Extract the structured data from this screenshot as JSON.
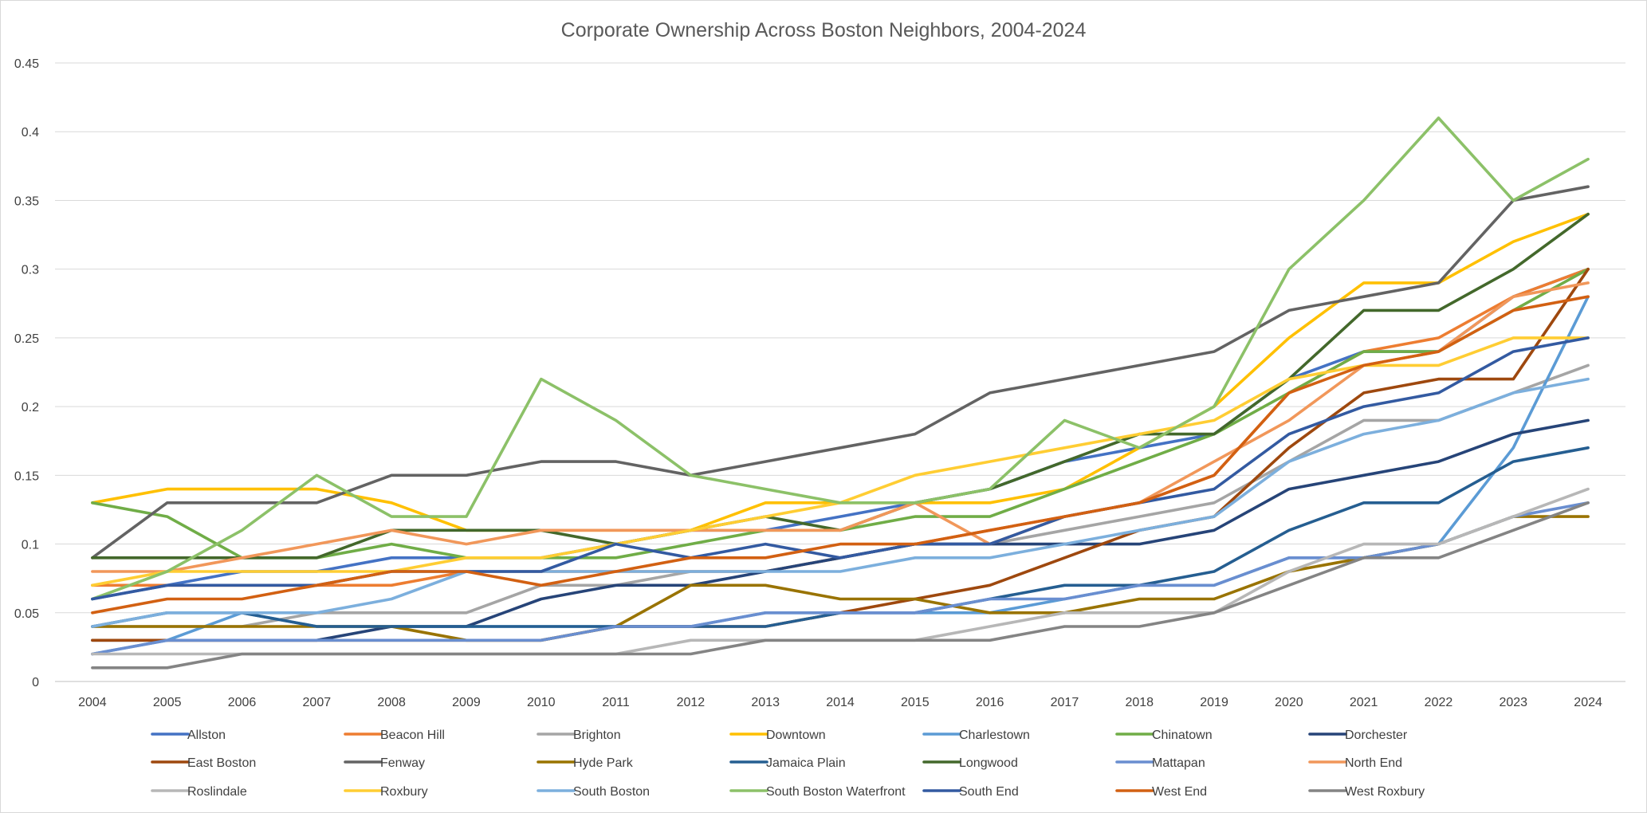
{
  "chart_data": {
    "type": "line",
    "title": "Corporate Ownership Across Boston Neighbors, 2004-2024",
    "xlabel": "",
    "ylabel": "",
    "ylim": [
      0,
      0.45
    ],
    "yticks": [
      "0",
      "0.05",
      "0.1",
      "0.15",
      "0.2",
      "0.25",
      "0.3",
      "0.35",
      "0.4",
      "0.45"
    ],
    "grid": true,
    "legend_position": "bottom",
    "x": [
      "2004",
      "2005",
      "2006",
      "2007",
      "2008",
      "2009",
      "2010",
      "2011",
      "2012",
      "2013",
      "2014",
      "2015",
      "2016",
      "2017",
      "2018",
      "2019",
      "2020",
      "2021",
      "2022",
      "2023",
      "2024"
    ],
    "series": [
      {
        "name": "Allston",
        "color": "#4472C4",
        "values": [
          0.06,
          0.07,
          0.08,
          0.08,
          0.09,
          0.09,
          0.09,
          0.1,
          0.11,
          0.11,
          0.12,
          0.13,
          0.14,
          0.16,
          0.17,
          0.18,
          0.22,
          0.24,
          0.24,
          0.28,
          0.3
        ]
      },
      {
        "name": "Beacon Hill",
        "color": "#ED7D31",
        "values": [
          0.07,
          0.07,
          0.07,
          0.07,
          0.07,
          0.08,
          0.08,
          0.08,
          0.08,
          0.08,
          0.09,
          0.1,
          0.11,
          0.12,
          0.13,
          0.15,
          0.21,
          0.24,
          0.25,
          0.28,
          0.3
        ]
      },
      {
        "name": "Brighton",
        "color": "#A5A5A5",
        "values": [
          0.04,
          0.04,
          0.04,
          0.05,
          0.05,
          0.05,
          0.07,
          0.07,
          0.08,
          0.08,
          0.09,
          0.1,
          0.1,
          0.11,
          0.12,
          0.13,
          0.16,
          0.19,
          0.19,
          0.21,
          0.23
        ]
      },
      {
        "name": "Downtown",
        "color": "#FFC000",
        "values": [
          0.13,
          0.14,
          0.14,
          0.14,
          0.13,
          0.11,
          0.11,
          0.11,
          0.11,
          0.13,
          0.13,
          0.13,
          0.13,
          0.14,
          0.17,
          0.2,
          0.25,
          0.29,
          0.29,
          0.32,
          0.34
        ]
      },
      {
        "name": "Charlestown",
        "color": "#5B9BD5",
        "values": [
          0.02,
          0.03,
          0.05,
          0.04,
          0.04,
          0.04,
          0.04,
          0.04,
          0.04,
          0.05,
          0.05,
          0.05,
          0.05,
          0.06,
          0.07,
          0.07,
          0.09,
          0.09,
          0.1,
          0.17,
          0.28
        ]
      },
      {
        "name": "Chinatown",
        "color": "#70AD47",
        "values": [
          0.13,
          0.12,
          0.09,
          0.09,
          0.1,
          0.09,
          0.09,
          0.09,
          0.1,
          0.11,
          0.11,
          0.12,
          0.12,
          0.14,
          0.16,
          0.18,
          0.21,
          0.24,
          0.24,
          0.27,
          0.3
        ]
      },
      {
        "name": "Dorchester",
        "color": "#264478",
        "values": [
          0.03,
          0.03,
          0.03,
          0.03,
          0.04,
          0.04,
          0.06,
          0.07,
          0.07,
          0.08,
          0.09,
          0.1,
          0.1,
          0.1,
          0.1,
          0.11,
          0.14,
          0.15,
          0.16,
          0.18,
          0.19
        ]
      },
      {
        "name": "East Boston",
        "color": "#9E480E",
        "values": [
          0.03,
          0.03,
          0.03,
          0.03,
          0.03,
          0.03,
          0.03,
          0.04,
          0.04,
          0.04,
          0.05,
          0.06,
          0.07,
          0.09,
          0.11,
          0.12,
          0.17,
          0.21,
          0.22,
          0.22,
          0.3
        ]
      },
      {
        "name": "Fenway",
        "color": "#636363",
        "values": [
          0.09,
          0.13,
          0.13,
          0.13,
          0.15,
          0.15,
          0.16,
          0.16,
          0.15,
          0.16,
          0.17,
          0.18,
          0.21,
          0.22,
          0.23,
          0.24,
          0.27,
          0.28,
          0.29,
          0.35,
          0.36
        ]
      },
      {
        "name": "Hyde Park",
        "color": "#997300",
        "values": [
          0.04,
          0.04,
          0.04,
          0.04,
          0.04,
          0.03,
          0.03,
          0.04,
          0.07,
          0.07,
          0.06,
          0.06,
          0.05,
          0.05,
          0.06,
          0.06,
          0.08,
          0.09,
          0.1,
          0.12,
          0.12
        ]
      },
      {
        "name": "Jamaica Plain",
        "color": "#255E91",
        "values": [
          0.04,
          0.05,
          0.05,
          0.04,
          0.04,
          0.04,
          0.04,
          0.04,
          0.04,
          0.04,
          0.05,
          0.05,
          0.06,
          0.07,
          0.07,
          0.08,
          0.11,
          0.13,
          0.13,
          0.16,
          0.17
        ]
      },
      {
        "name": "Longwood",
        "color": "#43682B",
        "values": [
          0.09,
          0.09,
          0.09,
          0.09,
          0.11,
          0.11,
          0.11,
          0.1,
          0.11,
          0.12,
          0.11,
          0.13,
          0.14,
          0.16,
          0.18,
          0.18,
          0.22,
          0.27,
          0.27,
          0.3,
          0.34
        ]
      },
      {
        "name": "Mattapan",
        "color": "#698ED0",
        "values": [
          0.02,
          0.03,
          0.03,
          0.03,
          0.03,
          0.03,
          0.03,
          0.04,
          0.04,
          0.05,
          0.05,
          0.05,
          0.06,
          0.06,
          0.07,
          0.07,
          0.09,
          0.09,
          0.1,
          0.12,
          0.13
        ]
      },
      {
        "name": "North End",
        "color": "#F1975A",
        "values": [
          0.08,
          0.08,
          0.09,
          0.1,
          0.11,
          0.1,
          0.11,
          0.11,
          0.11,
          0.11,
          0.11,
          0.13,
          0.1,
          0.12,
          0.13,
          0.16,
          0.19,
          0.23,
          0.24,
          0.28,
          0.29
        ]
      },
      {
        "name": "Roslindale",
        "color": "#B7B7B7",
        "values": [
          0.02,
          0.02,
          0.02,
          0.02,
          0.02,
          0.02,
          0.02,
          0.02,
          0.03,
          0.03,
          0.03,
          0.03,
          0.04,
          0.05,
          0.05,
          0.05,
          0.08,
          0.1,
          0.1,
          0.12,
          0.14
        ]
      },
      {
        "name": "Roxbury",
        "color": "#FFCD33",
        "values": [
          0.07,
          0.08,
          0.08,
          0.08,
          0.08,
          0.09,
          0.09,
          0.1,
          0.11,
          0.12,
          0.13,
          0.15,
          0.16,
          0.17,
          0.18,
          0.19,
          0.22,
          0.23,
          0.23,
          0.25,
          0.25
        ]
      },
      {
        "name": "South Boston",
        "color": "#7CAFDD",
        "values": [
          0.04,
          0.05,
          0.05,
          0.05,
          0.06,
          0.08,
          0.08,
          0.08,
          0.08,
          0.08,
          0.08,
          0.09,
          0.09,
          0.1,
          0.11,
          0.12,
          0.16,
          0.18,
          0.19,
          0.21,
          0.22
        ]
      },
      {
        "name": "South Boston Waterfront",
        "color": "#8CC168",
        "values": [
          0.06,
          0.08,
          0.11,
          0.15,
          0.12,
          0.12,
          0.22,
          0.19,
          0.15,
          0.14,
          0.13,
          0.13,
          0.14,
          0.19,
          0.17,
          0.2,
          0.3,
          0.35,
          0.41,
          0.35,
          0.38
        ]
      },
      {
        "name": "South End",
        "color": "#335AA1",
        "values": [
          0.06,
          0.07,
          0.07,
          0.07,
          0.08,
          0.08,
          0.08,
          0.1,
          0.09,
          0.1,
          0.09,
          0.1,
          0.1,
          0.12,
          0.13,
          0.14,
          0.18,
          0.2,
          0.21,
          0.24,
          0.25
        ]
      },
      {
        "name": "West End",
        "color": "#D26012",
        "values": [
          0.05,
          0.06,
          0.06,
          0.07,
          0.08,
          0.08,
          0.07,
          0.08,
          0.09,
          0.09,
          0.1,
          0.1,
          0.11,
          0.12,
          0.13,
          0.15,
          0.21,
          0.23,
          0.24,
          0.27,
          0.28
        ]
      },
      {
        "name": "West Roxbury",
        "color": "#848484",
        "values": [
          0.01,
          0.01,
          0.02,
          0.02,
          0.02,
          0.02,
          0.02,
          0.02,
          0.02,
          0.03,
          0.03,
          0.03,
          0.03,
          0.04,
          0.04,
          0.05,
          0.07,
          0.09,
          0.09,
          0.11,
          0.13
        ]
      }
    ]
  }
}
